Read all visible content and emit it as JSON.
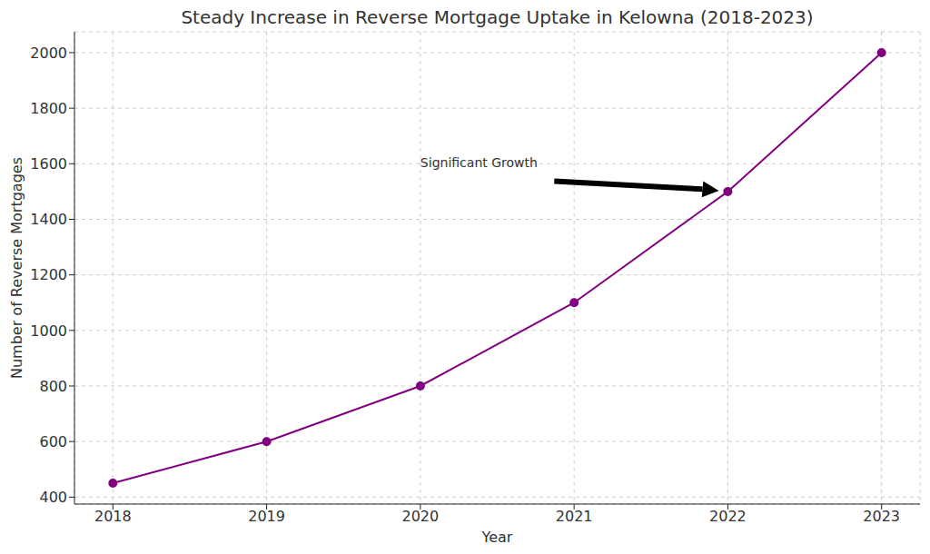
{
  "chart_data": {
    "type": "line",
    "title": "Steady Increase in Reverse Mortgage Uptake in Kelowna (2018-2023)",
    "x_label": "Year",
    "y_label": "Number of Reverse Mortgages",
    "x": [
      2018,
      2019,
      2020,
      2021,
      2022,
      2023
    ],
    "values": [
      450,
      600,
      800,
      1100,
      1500,
      2000
    ],
    "color": "#800080",
    "marker": "circle",
    "line_style": "solid",
    "xlim": [
      2017.75,
      2023.25
    ],
    "xticks": [
      2018,
      2019,
      2020,
      2021,
      2022,
      2023
    ],
    "ylim": [
      375,
      2075
    ],
    "yticks": [
      400,
      600,
      800,
      1000,
      1200,
      1400,
      1600,
      1800,
      2000
    ],
    "grid": true,
    "annotations": [
      {
        "text": "Significant Growth",
        "x": 2020,
        "y": 1600,
        "target": [
          2022,
          1500
        ]
      }
    ]
  }
}
